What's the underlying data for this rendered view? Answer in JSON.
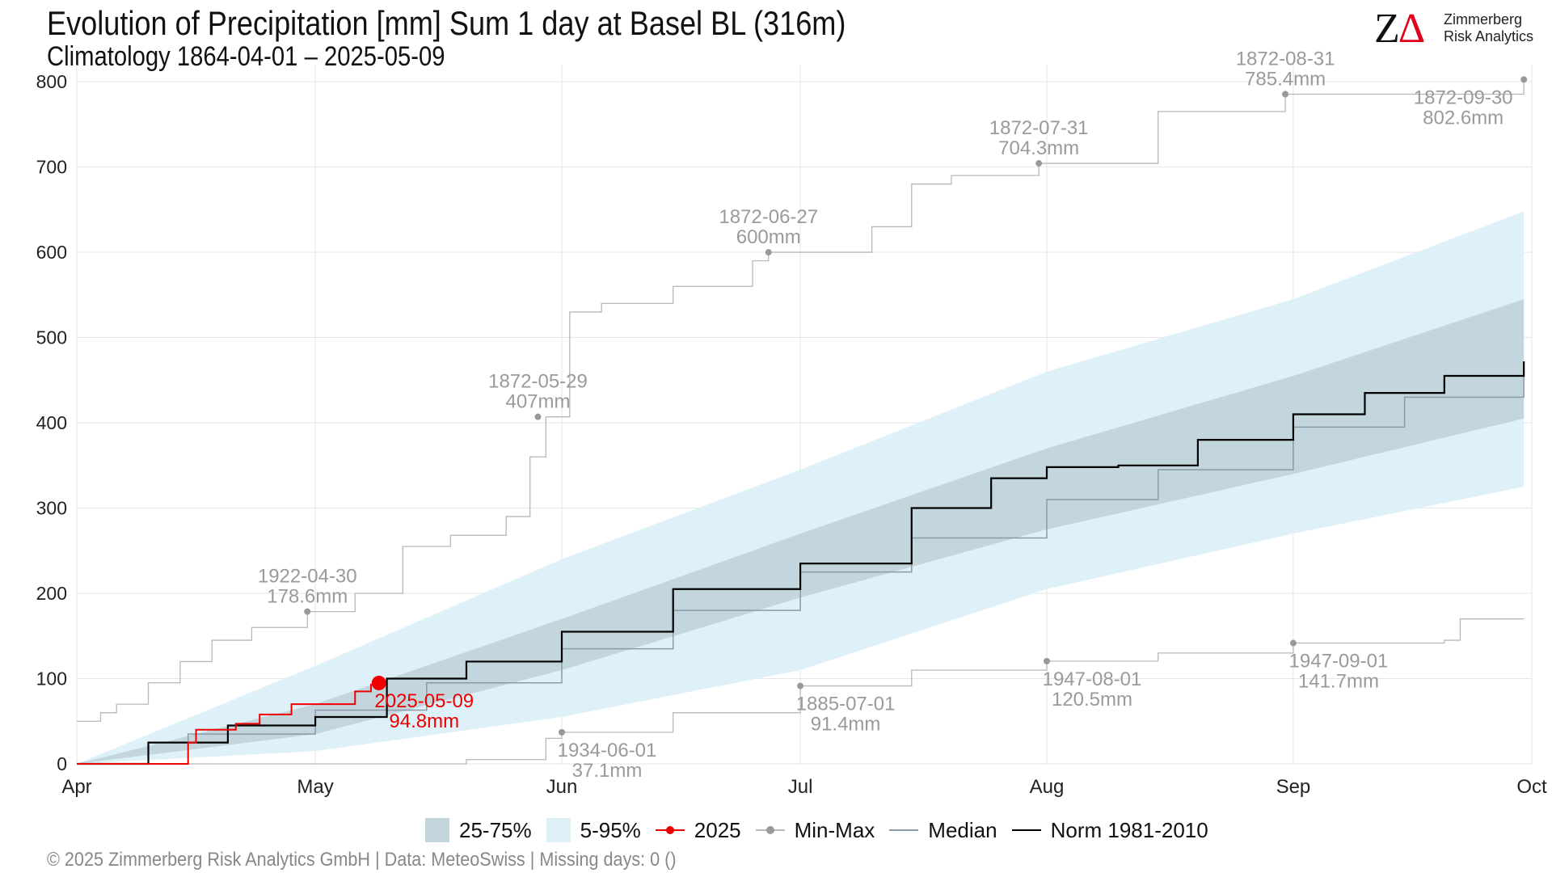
{
  "header": {
    "title": "Evolution of Precipitation [mm] Sum 1 day at Basel  BL (316m)",
    "subtitle": "Climatology 1864-04-01 – 2025-05-09"
  },
  "logo": {
    "mark_z": "Z",
    "mark_delta": "Δ",
    "line1": "Zimmerberg",
    "line2": "Risk Analytics"
  },
  "legend": {
    "iqr": "25-75%",
    "p5_95": "5-95%",
    "year": "2025",
    "minmax": "Min-Max",
    "median": "Median",
    "norm": "Norm 1981-2010"
  },
  "footer": "©  2025 Zimmerberg Risk Analytics GmbH | Data: MeteoSwiss | Missing days: 0 ()",
  "colors": {
    "p5_95": "#dff1f8",
    "iqr": "#c3d6dd",
    "year": "#ee0000",
    "minmax": "#b8b8b8",
    "median": "#8a9aa6",
    "norm": "#000000",
    "annotation": "#9a9a9a",
    "grid": "#e6e6e6"
  },
  "chart_data": {
    "type": "line",
    "x_type": "date",
    "x_range": [
      "2025-04-01",
      "2025-10-01"
    ],
    "y_range": [
      0,
      820
    ],
    "y_ticks": [
      0,
      100,
      200,
      300,
      400,
      500,
      600,
      700,
      800
    ],
    "x_ticks": [
      {
        "date": "2025-04-01",
        "label": "Apr"
      },
      {
        "date": "2025-05-01",
        "label": "May"
      },
      {
        "date": "2025-06-01",
        "label": "Jun"
      },
      {
        "date": "2025-07-01",
        "label": "Jul"
      },
      {
        "date": "2025-08-01",
        "label": "Aug"
      },
      {
        "date": "2025-09-01",
        "label": "Sep"
      },
      {
        "date": "2025-10-01",
        "label": "Oct"
      }
    ],
    "grid": true,
    "legend_position": "bottom",
    "bands": [
      {
        "name": "5-95%",
        "x": [
          "2025-04-01",
          "2025-05-01",
          "2025-06-01",
          "2025-07-01",
          "2025-08-01",
          "2025-09-01",
          "2025-09-30"
        ],
        "low": [
          0,
          15,
          55,
          110,
          205,
          270,
          325
        ],
        "high": [
          0,
          115,
          240,
          345,
          460,
          545,
          648
        ]
      },
      {
        "name": "25-75%",
        "x": [
          "2025-04-01",
          "2025-05-01",
          "2025-06-01",
          "2025-07-01",
          "2025-08-01",
          "2025-09-01",
          "2025-09-30"
        ],
        "low": [
          0,
          35,
          110,
          195,
          275,
          340,
          405
        ],
        "high": [
          0,
          70,
          170,
          270,
          370,
          455,
          545
        ]
      }
    ],
    "series": [
      {
        "name": "Median",
        "step": true,
        "x": [
          "2025-04-01",
          "2025-04-15",
          "2025-05-01",
          "2025-05-15",
          "2025-06-01",
          "2025-06-15",
          "2025-07-01",
          "2025-07-15",
          "2025-08-01",
          "2025-08-15",
          "2025-09-01",
          "2025-09-15",
          "2025-09-30"
        ],
        "y": [
          0,
          35,
          63,
          95,
          135,
          180,
          225,
          265,
          310,
          345,
          395,
          430,
          468
        ]
      },
      {
        "name": "Norm 1981-2010",
        "step": true,
        "x": [
          "2025-04-01",
          "2025-04-10",
          "2025-04-20",
          "2025-05-01",
          "2025-05-10",
          "2025-05-20",
          "2025-06-01",
          "2025-06-15",
          "2025-07-01",
          "2025-07-15",
          "2025-07-25",
          "2025-08-01",
          "2025-08-10",
          "2025-08-20",
          "2025-09-01",
          "2025-09-10",
          "2025-09-20",
          "2025-09-30"
        ],
        "y": [
          0,
          25,
          45,
          55,
          100,
          120,
          155,
          205,
          235,
          300,
          335,
          348,
          350,
          380,
          410,
          435,
          455,
          472
        ]
      },
      {
        "name": "2025",
        "step": true,
        "x": [
          "2025-04-01",
          "2025-04-13",
          "2025-04-15",
          "2025-04-16",
          "2025-04-21",
          "2025-04-24",
          "2025-04-28",
          "2025-05-04",
          "2025-05-06",
          "2025-05-08",
          "2025-05-09"
        ],
        "y": [
          0,
          0,
          25,
          40,
          47,
          58,
          70,
          70,
          85,
          93,
          94.8
        ]
      },
      {
        "name": "Max",
        "step": true,
        "x": [
          "2025-04-01",
          "2025-04-04",
          "2025-04-06",
          "2025-04-10",
          "2025-04-14",
          "2025-04-18",
          "2025-04-23",
          "2025-04-30",
          "2025-05-06",
          "2025-05-12",
          "2025-05-18",
          "2025-05-25",
          "2025-05-28",
          "2025-05-30",
          "2025-06-02",
          "2025-06-06",
          "2025-06-15",
          "2025-06-25",
          "2025-06-27",
          "2025-07-10",
          "2025-07-15",
          "2025-07-20",
          "2025-07-31",
          "2025-08-15",
          "2025-08-31",
          "2025-09-30"
        ],
        "y": [
          50,
          60,
          70,
          95,
          120,
          145,
          160,
          178.6,
          200,
          255,
          268,
          290,
          360,
          407,
          530,
          540,
          560,
          590,
          600,
          630,
          680,
          690,
          704.3,
          765,
          785.4,
          802.6
        ]
      },
      {
        "name": "Min",
        "step": true,
        "x": [
          "2025-04-01",
          "2025-05-01",
          "2025-05-20",
          "2025-05-30",
          "2025-06-01",
          "2025-06-15",
          "2025-07-01",
          "2025-07-15",
          "2025-08-01",
          "2025-08-15",
          "2025-09-01",
          "2025-09-20",
          "2025-09-22",
          "2025-09-30"
        ],
        "y": [
          0,
          0,
          5,
          30,
          37.1,
          60,
          91.4,
          110,
          120.5,
          130,
          141.7,
          145,
          170,
          170
        ]
      }
    ],
    "markers": [
      {
        "series": "2025",
        "date": "2025-05-09",
        "value": 94.8,
        "label_date": "2025-05-09",
        "label_value": "94.8mm",
        "anchor": "below"
      },
      {
        "series": "Max",
        "date": "2025-04-30",
        "value": 178.6,
        "label_date": "1922-04-30",
        "label_value": "178.6mm",
        "anchor": "above"
      },
      {
        "series": "Max",
        "date": "2025-05-29",
        "value": 407,
        "label_date": "1872-05-29",
        "label_value": "407mm",
        "anchor": "above"
      },
      {
        "series": "Max",
        "date": "2025-06-27",
        "value": 600,
        "label_date": "1872-06-27",
        "label_value": "600mm",
        "anchor": "above"
      },
      {
        "series": "Max",
        "date": "2025-07-31",
        "value": 704.3,
        "label_date": "1872-07-31",
        "label_value": "704.3mm",
        "anchor": "above"
      },
      {
        "series": "Max",
        "date": "2025-08-31",
        "value": 785.4,
        "label_date": "1872-08-31",
        "label_value": "785.4mm",
        "anchor": "above"
      },
      {
        "series": "Max",
        "date": "2025-09-30",
        "value": 802.6,
        "label_date": "1872-09-30",
        "label_value": "802.6mm",
        "anchor": "below"
      },
      {
        "series": "Min",
        "date": "2025-06-01",
        "value": 37.1,
        "label_date": "1934-06-01",
        "label_value": "37.1mm",
        "anchor": "below"
      },
      {
        "series": "Min",
        "date": "2025-07-01",
        "value": 91.4,
        "label_date": "1885-07-01",
        "label_value": "91.4mm",
        "anchor": "below"
      },
      {
        "series": "Min",
        "date": "2025-08-01",
        "value": 120.5,
        "label_date": "1947-08-01",
        "label_value": "120.5mm",
        "anchor": "below"
      },
      {
        "series": "Min",
        "date": "2025-09-01",
        "value": 141.7,
        "label_date": "1947-09-01",
        "label_value": "141.7mm",
        "anchor": "below"
      }
    ]
  }
}
